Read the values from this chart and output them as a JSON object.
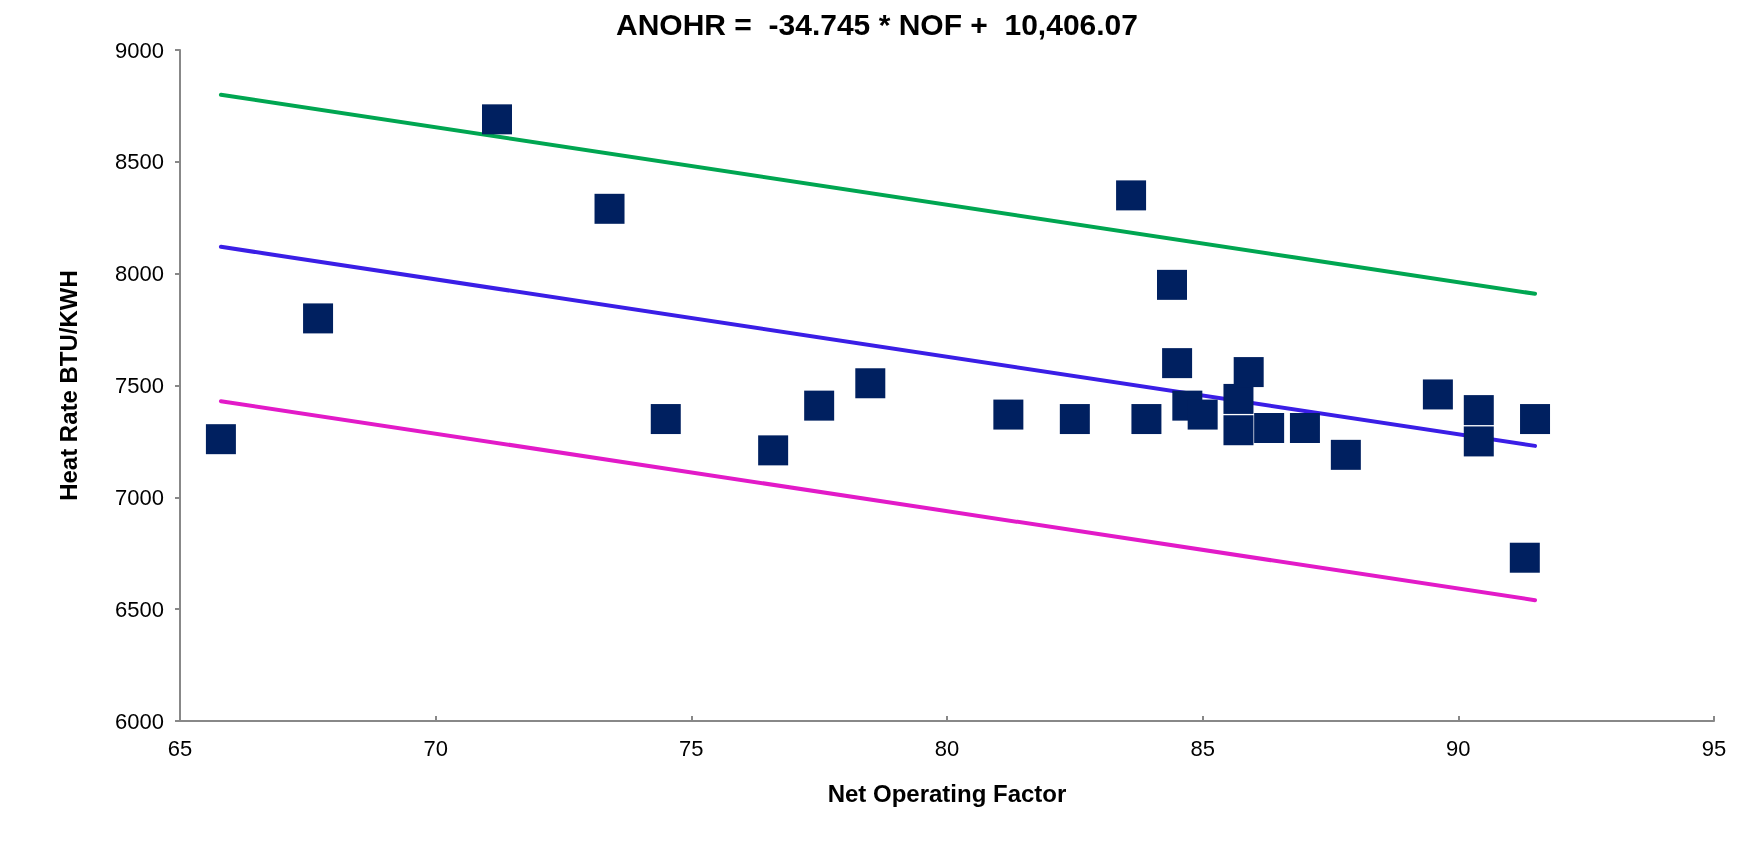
{
  "chart_data": {
    "type": "scatter",
    "title": "ANOHR =  -34.745 * NOF +  10,406.07",
    "xlabel": "Net Operating Factor",
    "ylabel": "Heat Rate BTU/KWH",
    "xlim": [
      65,
      95
    ],
    "xticks": [
      65,
      70,
      75,
      80,
      85,
      90,
      95
    ],
    "ylim": [
      6000,
      9000
    ],
    "yticks": [
      6000,
      6500,
      7000,
      7500,
      8000,
      8500,
      9000
    ],
    "grid": false,
    "series": [
      {
        "marker": "square",
        "color": "#002060",
        "x": [
          65.8,
          67.7,
          71.2,
          73.4,
          74.5,
          76.6,
          77.5,
          78.5,
          81.2,
          82.5,
          83.9,
          83.6,
          84.4,
          84.5,
          84.7,
          85.0,
          85.7,
          85.9,
          85.7,
          86.3,
          87.0,
          87.8,
          89.6,
          90.4,
          90.4,
          91.5,
          91.3
        ],
        "values": [
          7260,
          7800,
          8690,
          8290,
          7350,
          7210,
          7410,
          7510,
          7370,
          7350,
          7350,
          8350,
          7950,
          7600,
          7410,
          7370,
          7440,
          7560,
          7300,
          7310,
          7310,
          7190,
          7460,
          7390,
          7250,
          7350,
          6730
        ]
      },
      {
        "type": "line",
        "marker": "none",
        "color": "#00a651",
        "x": [
          65.8,
          91.5
        ],
        "values": [
          8800,
          7910
        ]
      },
      {
        "type": "line",
        "marker": "none",
        "color": "#3a1ee6",
        "x": [
          65.8,
          91.5
        ],
        "values": [
          8120,
          7230
        ]
      },
      {
        "type": "line",
        "marker": "none",
        "color": "#e21ac8",
        "x": [
          65.8,
          91.5
        ],
        "values": [
          7430,
          6540
        ]
      }
    ]
  }
}
